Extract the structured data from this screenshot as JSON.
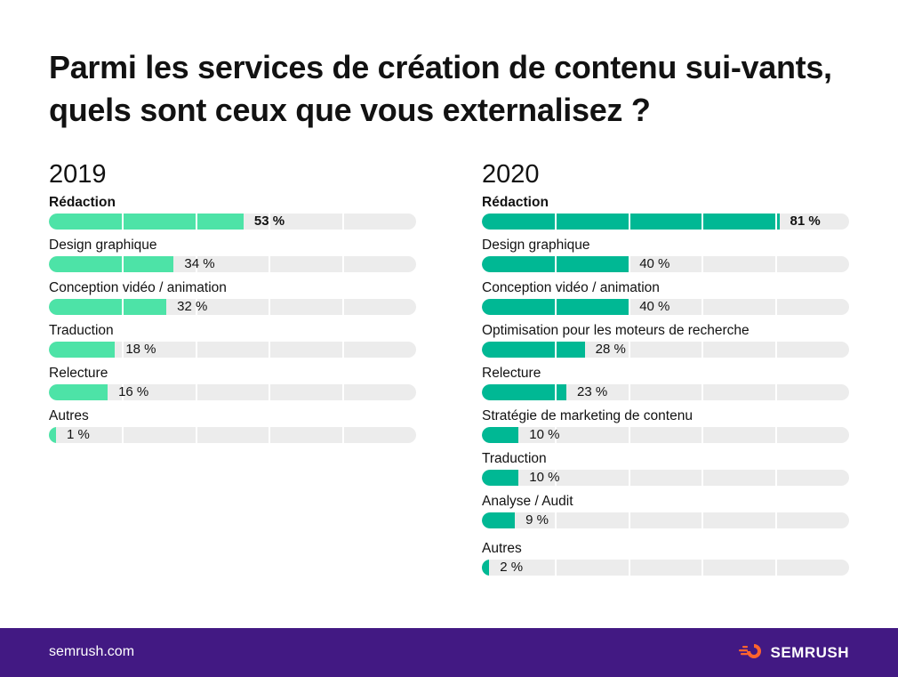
{
  "title": "Parmi les services de création de contenu sui-vants, quels sont ceux que vous externalisez ?",
  "colors": {
    "fill_2019": "#4de3a7",
    "fill_2020": "#00b894",
    "track": "#ececec",
    "footer": "#421983"
  },
  "chart_data": [
    {
      "type": "bar",
      "orientation": "horizontal",
      "title": "2019",
      "xlim": [
        0,
        100
      ],
      "grid": true,
      "categories": [
        "Rédaction",
        "Design graphique",
        "Conception vidéo / animation",
        "Traduction",
        "Relecture",
        "Autres"
      ],
      "values": [
        53,
        34,
        32,
        18,
        16,
        1
      ],
      "value_labels": [
        "53 %",
        "34 %",
        "32 %",
        "18 %",
        "16 %",
        "1 %"
      ],
      "color": "#4de3a7"
    },
    {
      "type": "bar",
      "orientation": "horizontal",
      "title": "2020",
      "xlim": [
        0,
        100
      ],
      "grid": true,
      "categories": [
        "Rédaction",
        "Design graphique",
        "Conception vidéo / animation",
        "Optimisation pour les moteurs de recherche",
        "Relecture",
        "Stratégie de marketing de contenu",
        "Traduction",
        "Analyse / Audit",
        "Autres"
      ],
      "values": [
        81,
        40,
        40,
        28,
        23,
        10,
        10,
        9,
        2
      ],
      "value_labels": [
        "81 %",
        "40 %",
        "40 %",
        "28 %",
        "23 %",
        "10 %",
        "10 %",
        "9 %",
        "2 %"
      ],
      "color": "#00b894"
    }
  ],
  "footer": {
    "url": "semrush.com",
    "brand": "SEMRUSH",
    "brand_icon": "semrush-fire-icon"
  }
}
